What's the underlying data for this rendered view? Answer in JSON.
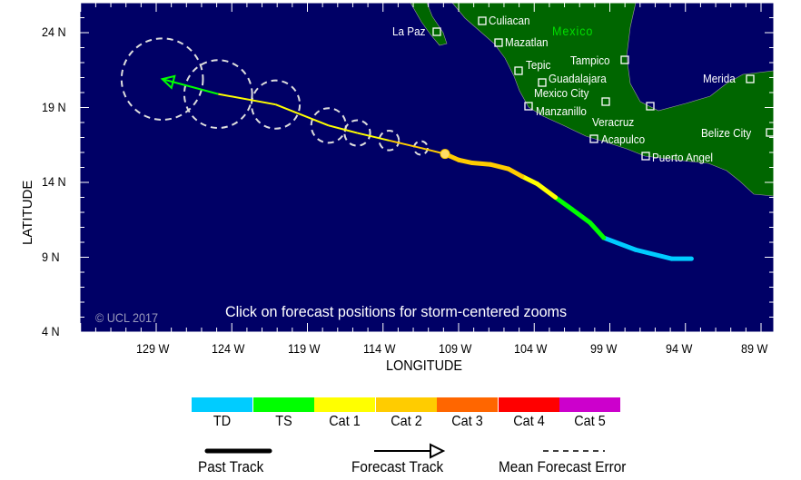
{
  "axes": {
    "xlabel": "LONGITUDE",
    "ylabel": "LATITUDE",
    "lon_ticks": [
      "129 W",
      "124 W",
      "119 W",
      "114 W",
      "109 W",
      "104 W",
      "99 W",
      "94 W",
      "89 W"
    ],
    "lat_ticks": [
      "24 N",
      "19 N",
      "14 N",
      "9 N",
      "4 N"
    ],
    "lon_range_w": [
      134,
      88.2
    ],
    "lat_range_n": [
      4,
      26
    ]
  },
  "map": {
    "country_label": "Mexico",
    "copyright": "© UCL 2017",
    "instruction": "Click on forecast positions for storm-centered zooms",
    "cities": [
      "La Paz",
      "Culiacan",
      "Mazatlan",
      "Tepic",
      "Tampico",
      "Guadalajara",
      "Mexico City",
      "Manzanillo",
      "Veracruz",
      "Acapulco",
      "Puerto Angel",
      "Merida",
      "Belize City"
    ],
    "colors": {
      "ocean": "#000066",
      "land": "#006600",
      "country_label": "#00dd00"
    }
  },
  "chart_data": {
    "type": "map-track",
    "past_track": [
      {
        "lon": 93.6,
        "lat": 8.9,
        "cat": "TD"
      },
      {
        "lon": 94.9,
        "lat": 8.9,
        "cat": "TD"
      },
      {
        "lon": 97.3,
        "lat": 9.5,
        "cat": "TD"
      },
      {
        "lon": 99.4,
        "lat": 10.3,
        "cat": "TD"
      },
      {
        "lon": 100.3,
        "lat": 11.3,
        "cat": "TS"
      },
      {
        "lon": 101.5,
        "lat": 12.2,
        "cat": "TS"
      },
      {
        "lon": 102.6,
        "lat": 13.0,
        "cat": "TS"
      },
      {
        "lon": 103.8,
        "lat": 13.9,
        "cat": "Cat 1"
      },
      {
        "lon": 104.8,
        "lat": 14.4,
        "cat": "Cat 1"
      },
      {
        "lon": 105.7,
        "lat": 14.9,
        "cat": "Cat 2"
      },
      {
        "lon": 106.9,
        "lat": 15.2,
        "cat": "Cat 2"
      },
      {
        "lon": 108.1,
        "lat": 15.3,
        "cat": "Cat 2"
      },
      {
        "lon": 109.0,
        "lat": 15.5,
        "cat": "Cat 2"
      },
      {
        "lon": 109.9,
        "lat": 15.9,
        "cat": "Cat 2"
      }
    ],
    "forecast_track": [
      {
        "lon": 109.9,
        "lat": 15.9,
        "cat": "Cat 2",
        "err_deg": 0
      },
      {
        "lon": 111.5,
        "lat": 16.3,
        "cat": "Cat 2",
        "err_deg": 0.45
      },
      {
        "lon": 113.6,
        "lat": 16.8,
        "cat": "Cat 2",
        "err_deg": 0.65
      },
      {
        "lon": 115.7,
        "lat": 17.3,
        "cat": "Cat 1",
        "err_deg": 0.85
      },
      {
        "lon": 117.6,
        "lat": 17.8,
        "cat": "Cat 1",
        "err_deg": 1.15
      },
      {
        "lon": 121.1,
        "lat": 19.2,
        "cat": "Cat 1",
        "err_deg": 1.6
      },
      {
        "lon": 124.9,
        "lat": 19.9,
        "cat": "Cat 1",
        "err_deg": 2.25
      },
      {
        "lon": 128.6,
        "lat": 20.9,
        "cat": "TS",
        "err_deg": 2.7
      }
    ]
  },
  "legend": {
    "categories": [
      {
        "label": "TD",
        "color": "#00ccff"
      },
      {
        "label": "TS",
        "color": "#00ff00"
      },
      {
        "label": "Cat 1",
        "color": "#ffff00"
      },
      {
        "label": "Cat 2",
        "color": "#ffcc00"
      },
      {
        "label": "Cat 3",
        "color": "#ff6600"
      },
      {
        "label": "Cat 4",
        "color": "#ff0000"
      },
      {
        "label": "Cat 5",
        "color": "#cc00cc"
      }
    ],
    "past_track": "Past Track",
    "forecast_track": "Forecast Track",
    "mean_error": "Mean Forecast Error"
  }
}
